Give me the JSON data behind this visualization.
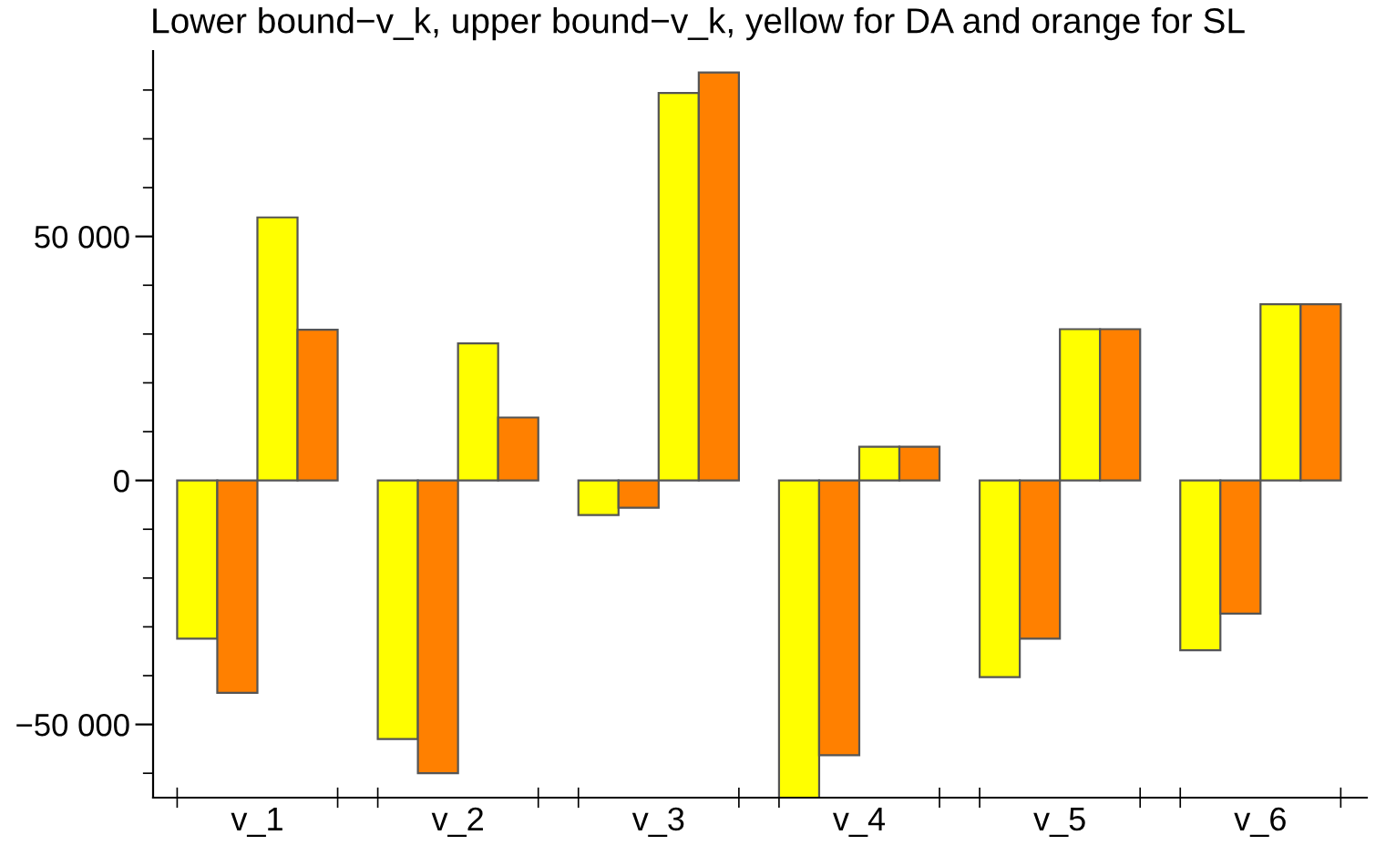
{
  "chart_data": {
    "type": "bar",
    "title": "Lower bound−v_k, upper bound−v_k, yellow for DA and orange for SL",
    "categories": [
      "v_1",
      "v_2",
      "v_3",
      "v_4",
      "v_5",
      "v_6"
    ],
    "series": [
      {
        "color": "#ffff00",
        "values": [
          -32400,
          -53000,
          -7100,
          -65000,
          -40300,
          -34800
        ]
      },
      {
        "color": "#ff8000",
        "values": [
          -43500,
          -60000,
          -5600,
          -56300,
          -32400,
          -27300
        ]
      },
      {
        "color": "#ffff00",
        "values": [
          53900,
          28100,
          79400,
          6900,
          31000,
          36100
        ]
      },
      {
        "color": "#ff8000",
        "values": [
          30900,
          12900,
          83600,
          6900,
          31000,
          36100
        ]
      }
    ],
    "ylim": [
      -65000,
      88000
    ],
    "yticks": [
      {
        "value": -50000,
        "label": "−50 000"
      },
      0,
      {
        "value": 50000,
        "label": "50 000"
      }
    ],
    "grid": false,
    "legend": false
  }
}
